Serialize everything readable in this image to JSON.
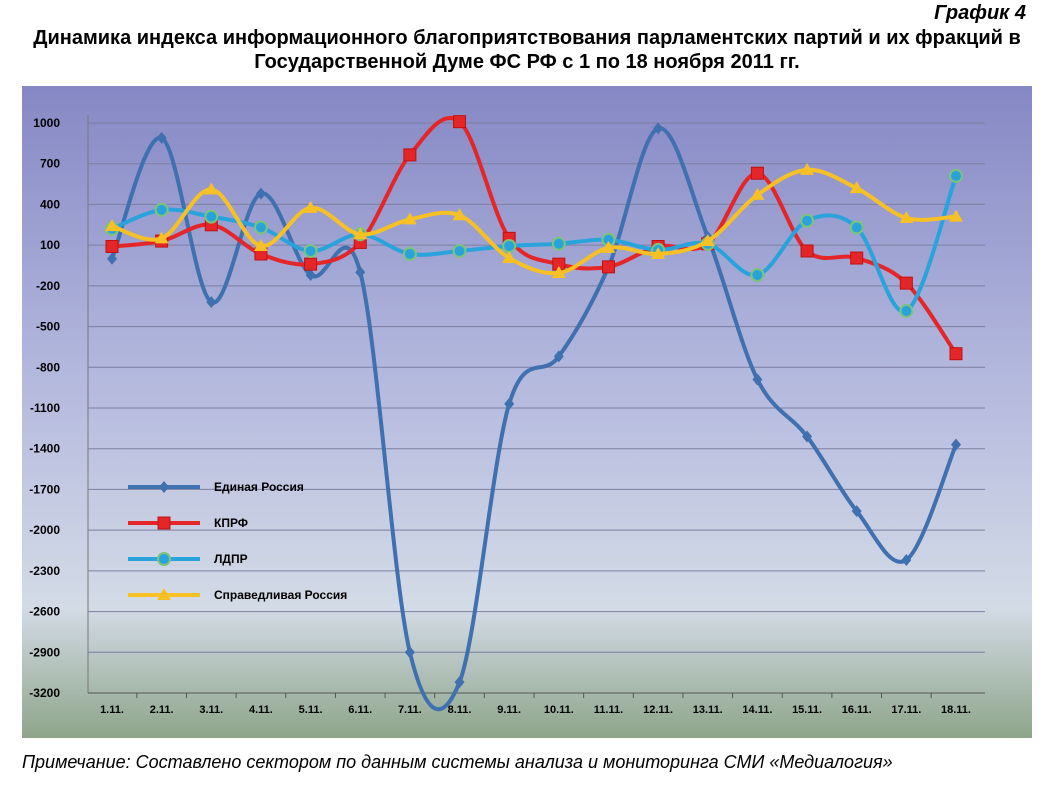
{
  "chart_data": {
    "type": "line",
    "label": "График 4",
    "title": "Динамика индекса информационного благоприятствования парламентских партий и их фракций в Государственной Думе ФС РФ с 1 по 18 ноября 2011 гг.",
    "note": "Примечание: Составлено сектором по данным системы анализа и мониторинга СМИ «Медиалогия»",
    "categories": [
      "1.11.",
      "2.11.",
      "3.11.",
      "4.11.",
      "5.11.",
      "6.11.",
      "7.11.",
      "8.11.",
      "9.11.",
      "10.11.",
      "11.11.",
      "12.11.",
      "13.11.",
      "14.11.",
      "15.11.",
      "16.11.",
      "17.11.",
      "18.11."
    ],
    "ylim": [
      -3200,
      1000
    ],
    "yticks": [
      1000,
      700,
      400,
      100,
      -200,
      -500,
      -800,
      -1100,
      -1400,
      -1700,
      -2000,
      -2300,
      -2600,
      -2900,
      -3200
    ],
    "legend_position": "left-bottom",
    "series": [
      {
        "name": "Единая Россия",
        "color": "#3f70b0",
        "marker": "diamond",
        "values": [
          0,
          890,
          -320,
          480,
          -120,
          -100,
          -2900,
          -3120,
          -1070,
          -720,
          -60,
          960,
          160,
          -890,
          -1310,
          -1860,
          -2220,
          -1370
        ]
      },
      {
        "name": "КПРФ",
        "color": "#e52628",
        "marker": "square",
        "values": [
          90,
          130,
          250,
          35,
          -40,
          120,
          765,
          1010,
          150,
          -40,
          -60,
          90,
          110,
          630,
          57,
          5,
          -180,
          -700
        ]
      },
      {
        "name": "ЛДПР",
        "color": "#29a3dc",
        "marker": "circle",
        "values": [
          220,
          360,
          310,
          230,
          57,
          180,
          35,
          57,
          94,
          110,
          140,
          65,
          110,
          -120,
          280,
          230,
          -385,
          610
        ]
      },
      {
        "name": "Справедливая Россия",
        "color": "#f7c024",
        "marker": "triangle",
        "values": [
          240,
          150,
          510,
          94,
          375,
          180,
          290,
          320,
          5,
          -105,
          80,
          35,
          130,
          470,
          655,
          520,
          300,
          310
        ]
      }
    ]
  }
}
